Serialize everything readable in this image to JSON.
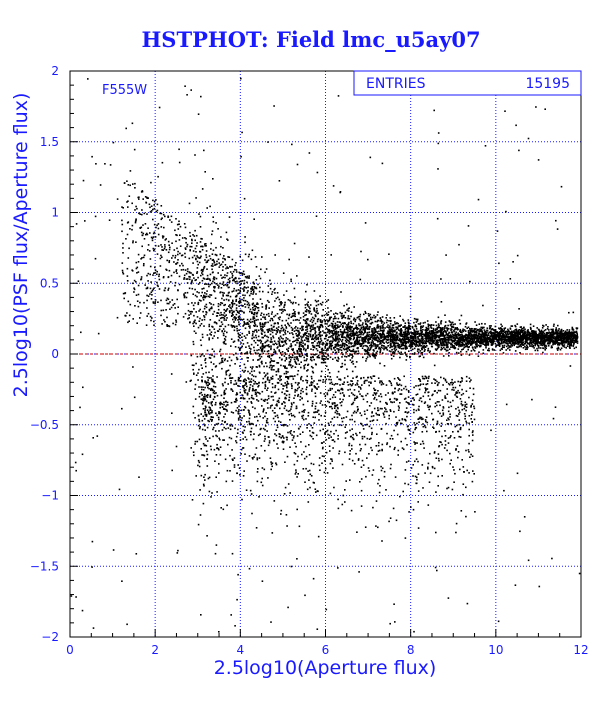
{
  "chart_data": {
    "type": "scatter",
    "title": "HSTPHOT: Field lmc_u5ay07",
    "xlabel": "2.5log10(Aperture flux)",
    "ylabel": "2.5log10(PSF flux/Aperture flux)",
    "xlim": [
      0,
      12
    ],
    "ylim": [
      -2,
      2
    ],
    "x_ticks": [
      "0",
      "2",
      "4",
      "6",
      "8",
      "10",
      "12"
    ],
    "y_ticks": [
      "-2",
      "-1.5",
      "-1",
      "-0.5",
      "0",
      "0.5",
      "1",
      "1.5",
      "2"
    ],
    "grid": true,
    "filter_label": "F555W",
    "stats": {
      "entries_label": "ENTRIES",
      "entries_value": "15195"
    },
    "reference_line": {
      "y": 0,
      "color": "#cc0000",
      "style": "dashed"
    },
    "points_note": "Dense cloud of ~15195 points concentrated near y≈0.1 for x 4–12, spreading upward (to y≈1) and downward (to y≈-1) at x 2–6.",
    "series": [
      {
        "values": [
          [
            0.4,
            1.95
          ],
          [
            0.5,
            1.4
          ],
          [
            0.7,
            1.2
          ],
          [
            0.8,
            1.35
          ],
          [
            1.0,
            1.5
          ],
          [
            1.1,
            1.1
          ],
          [
            1.2,
            0.95
          ],
          [
            1.3,
            1.6
          ],
          [
            1.4,
            1.3
          ],
          [
            1.5,
            1.45
          ],
          [
            1.6,
            1.0
          ],
          [
            1.7,
            1.1
          ],
          [
            1.8,
            0.85
          ],
          [
            1.9,
            1.05
          ],
          [
            2.0,
            0.9
          ],
          [
            2.1,
            1.0
          ],
          [
            2.2,
            0.75
          ],
          [
            2.3,
            0.8
          ],
          [
            2.4,
            0.7
          ],
          [
            2.5,
            0.65
          ],
          [
            2.6,
            0.6
          ],
          [
            2.8,
            0.55
          ],
          [
            3.0,
            0.5
          ],
          [
            3.2,
            0.45
          ],
          [
            3.4,
            0.4
          ],
          [
            3.6,
            0.35
          ],
          [
            3.8,
            0.3
          ],
          [
            4.0,
            0.25
          ],
          [
            4.5,
            0.2
          ],
          [
            5.0,
            0.18
          ],
          [
            5.5,
            0.15
          ],
          [
            6.0,
            0.14
          ],
          [
            7.0,
            0.13
          ],
          [
            8.0,
            0.12
          ],
          [
            9.0,
            0.12
          ],
          [
            10.0,
            0.13
          ],
          [
            11.0,
            0.14
          ],
          [
            11.8,
            0.3
          ],
          [
            3.0,
            -0.5
          ],
          [
            3.5,
            -0.6
          ],
          [
            4.0,
            -0.7
          ],
          [
            4.5,
            -0.8
          ],
          [
            5.0,
            -0.5
          ],
          [
            5.5,
            -0.9
          ],
          [
            6.0,
            -0.6
          ],
          [
            6.5,
            -0.4
          ],
          [
            7.0,
            -0.7
          ],
          [
            8.0,
            -0.8
          ],
          [
            9.0,
            -0.9
          ],
          [
            2.5,
            -1.4
          ],
          [
            3.0,
            -1.2
          ],
          [
            4.5,
            -1.6
          ],
          [
            5.5,
            -1.7
          ],
          [
            6.0,
            -1.8
          ],
          [
            7.5,
            -1.9
          ],
          [
            1.2,
            -1.6
          ],
          [
            0.5,
            -1.5
          ],
          [
            4.0,
            1.4
          ],
          [
            3.0,
            1.7
          ],
          [
            1.5,
            -0.3
          ]
        ]
      }
    ]
  }
}
